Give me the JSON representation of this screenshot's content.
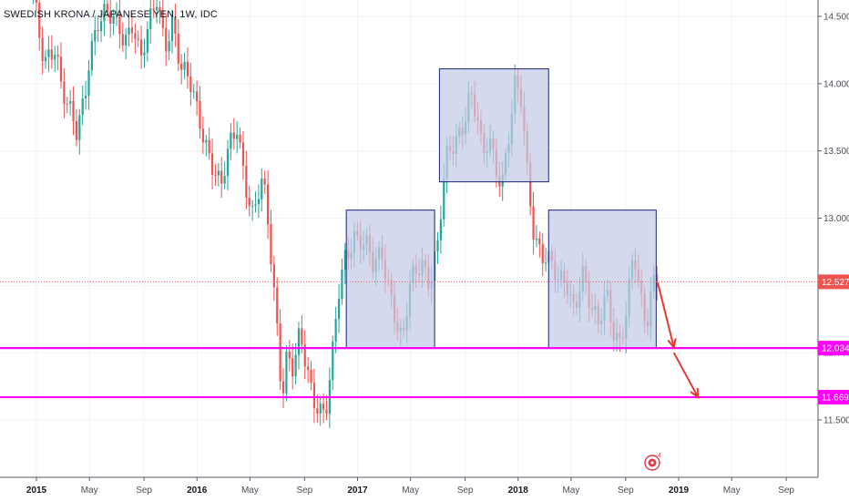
{
  "title": "SWEDISH KRONA / JAPANESE YEN, 1W, IDC",
  "chart_data": {
    "type": "candlestick",
    "symbol": "SEKJPY",
    "timeframe": "1W",
    "ylim": [
      11.15,
      14.62
    ],
    "y_ticks": [
      11.5,
      12.0,
      12.5,
      13.0,
      13.5,
      14.0,
      14.5
    ],
    "y_tick_labels": [
      "11.500",
      "12.000",
      "12.500",
      "13.000",
      "13.500",
      "14.000",
      "14.500"
    ],
    "x_ticks": [
      {
        "t": 2015.0,
        "label": "2015",
        "year": true
      },
      {
        "t": 2015.33,
        "label": "May",
        "year": false
      },
      {
        "t": 2015.67,
        "label": "Sep",
        "year": false
      },
      {
        "t": 2016.0,
        "label": "2016",
        "year": true
      },
      {
        "t": 2016.33,
        "label": "May",
        "year": false
      },
      {
        "t": 2016.67,
        "label": "Sep",
        "year": false
      },
      {
        "t": 2017.0,
        "label": "2017",
        "year": true
      },
      {
        "t": 2017.33,
        "label": "May",
        "year": false
      },
      {
        "t": 2017.67,
        "label": "Sep",
        "year": false
      },
      {
        "t": 2018.0,
        "label": "2018",
        "year": true
      },
      {
        "t": 2018.33,
        "label": "May",
        "year": false
      },
      {
        "t": 2018.67,
        "label": "Sep",
        "year": false
      },
      {
        "t": 2019.0,
        "label": "2019",
        "year": true
      },
      {
        "t": 2019.33,
        "label": "May",
        "year": false
      },
      {
        "t": 2019.67,
        "label": "Sep",
        "year": false
      }
    ],
    "price_path": [
      [
        2014.98,
        14.7
      ],
      [
        2015.02,
        14.3
      ],
      [
        2015.05,
        14.1
      ],
      [
        2015.12,
        14.3
      ],
      [
        2015.15,
        14.05
      ],
      [
        2015.2,
        13.85
      ],
      [
        2015.25,
        13.6
      ],
      [
        2015.3,
        13.85
      ],
      [
        2015.33,
        14.2
      ],
      [
        2015.38,
        14.5
      ],
      [
        2015.43,
        14.55
      ],
      [
        2015.5,
        14.4
      ],
      [
        2015.55,
        14.3
      ],
      [
        2015.6,
        14.5
      ],
      [
        2015.65,
        14.2
      ],
      [
        2015.7,
        14.4
      ],
      [
        2015.75,
        14.6
      ],
      [
        2015.8,
        14.3
      ],
      [
        2015.85,
        14.5
      ],
      [
        2015.9,
        14.1
      ],
      [
        2015.95,
        14.0
      ],
      [
        2016.0,
        13.8
      ],
      [
        2016.05,
        13.6
      ],
      [
        2016.1,
        13.4
      ],
      [
        2016.15,
        13.2
      ],
      [
        2016.2,
        13.5
      ],
      [
        2016.25,
        13.7
      ],
      [
        2016.3,
        13.3
      ],
      [
        2016.35,
        13.0
      ],
      [
        2016.4,
        13.25
      ],
      [
        2016.43,
        13.1
      ],
      [
        2016.47,
        12.6
      ],
      [
        2016.5,
        12.2
      ],
      [
        2016.53,
        11.7
      ],
      [
        2016.56,
        12.0
      ],
      [
        2016.6,
        11.85
      ],
      [
        2016.64,
        12.1
      ],
      [
        2016.68,
        11.9
      ],
      [
        2016.72,
        11.7
      ],
      [
        2016.77,
        11.6
      ],
      [
        2016.8,
        11.55
      ],
      [
        2016.84,
        11.9
      ],
      [
        2016.88,
        12.4
      ],
      [
        2016.92,
        12.7
      ],
      [
        2016.98,
        12.9
      ],
      [
        2017.05,
        12.8
      ],
      [
        2017.1,
        12.6
      ],
      [
        2017.15,
        12.75
      ],
      [
        2017.2,
        12.5
      ],
      [
        2017.25,
        12.2
      ],
      [
        2017.28,
        12.05
      ],
      [
        2017.33,
        12.5
      ],
      [
        2017.4,
        12.7
      ],
      [
        2017.45,
        12.55
      ],
      [
        2017.5,
        12.8
      ],
      [
        2017.55,
        13.4
      ],
      [
        2017.6,
        13.55
      ],
      [
        2017.65,
        13.7
      ],
      [
        2017.7,
        13.95
      ],
      [
        2017.75,
        13.7
      ],
      [
        2017.78,
        13.4
      ],
      [
        2017.82,
        13.6
      ],
      [
        2017.86,
        13.4
      ],
      [
        2017.9,
        13.3
      ],
      [
        2017.94,
        13.6
      ],
      [
        2017.98,
        13.95
      ],
      [
        2018.02,
        13.85
      ],
      [
        2018.06,
        13.3
      ],
      [
        2018.1,
        12.9
      ],
      [
        2018.15,
        12.75
      ],
      [
        2018.2,
        12.65
      ],
      [
        2018.25,
        12.5
      ],
      [
        2018.3,
        12.55
      ],
      [
        2018.35,
        12.35
      ],
      [
        2018.4,
        12.6
      ],
      [
        2018.45,
        12.3
      ],
      [
        2018.5,
        12.2
      ],
      [
        2018.55,
        12.5
      ],
      [
        2018.6,
        12.15
      ],
      [
        2018.64,
        12.05
      ],
      [
        2018.68,
        12.3
      ],
      [
        2018.72,
        12.75
      ],
      [
        2018.76,
        12.45
      ],
      [
        2018.8,
        12.25
      ],
      [
        2018.84,
        12.55
      ],
      [
        2018.87,
        12.53
      ]
    ],
    "rectangles": [
      {
        "t1": 2016.93,
        "t2": 2017.48,
        "y1": 12.034,
        "y2": 13.06
      },
      {
        "t1": 2017.51,
        "t2": 2018.19,
        "y1": 13.27,
        "y2": 14.11
      },
      {
        "t1": 2018.19,
        "t2": 2018.86,
        "y1": 12.034,
        "y2": 13.06
      }
    ],
    "horizontal_lines": [
      {
        "value": 12.034,
        "label": "12.034",
        "color": "#ff00ff"
      },
      {
        "value": 11.669,
        "label": "11.669",
        "color": "#ff00ff"
      }
    ],
    "last_price": {
      "value": 12.527,
      "label": "12.527",
      "color": "#ef5350"
    },
    "arrows": [
      {
        "from": [
          2018.87,
          12.52
        ],
        "to": [
          2018.97,
          12.04
        ]
      },
      {
        "from": [
          2018.97,
          12.0
        ],
        "to": [
          2019.12,
          11.67
        ]
      }
    ],
    "colors": {
      "up": "#26a69a",
      "down": "#ef5350",
      "box_fill": "#c5cbe6",
      "box_stroke": "#1a237e",
      "arrow": "#e53935",
      "grid": "#f0f3fa",
      "axis": "#555b66"
    },
    "grid": true
  }
}
